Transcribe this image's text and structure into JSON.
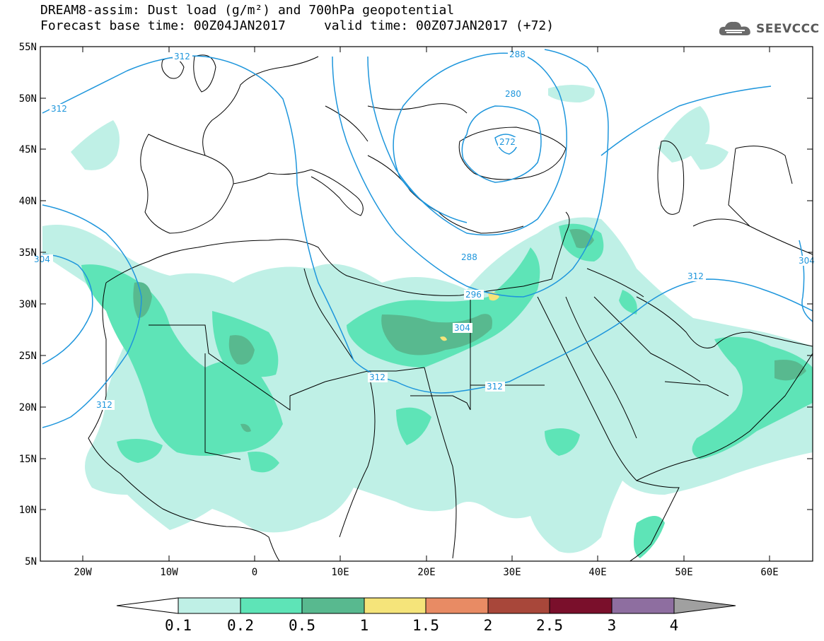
{
  "title": {
    "line1": "DREAM8-assim: Dust load (g/m²) and 700hPa geopotential",
    "line2": "Forecast base time: 00Z04JAN2017     valid time: 00Z07JAN2017 (+72)"
  },
  "logo": {
    "text": "SEEVCCC",
    "icon": "cloud-icon"
  },
  "map": {
    "lat_labels": [
      "55N",
      "50N",
      "45N",
      "40N",
      "35N",
      "30N",
      "25N",
      "20N",
      "15N",
      "10N",
      "5N"
    ],
    "lon_labels": [
      "20W",
      "10W",
      "0",
      "10E",
      "20E",
      "30E",
      "40E",
      "50E",
      "60E"
    ],
    "geopotential_labels": [
      "312",
      "312",
      "312",
      "312",
      "312",
      "312",
      "304",
      "304",
      "304",
      "296",
      "288",
      "288",
      "280",
      "272"
    ],
    "colors": {
      "contour": "#1e96dc",
      "coast": "#000000"
    }
  },
  "colorbar": {
    "ticks": [
      "0.1",
      "0.2",
      "0.5",
      "1",
      "1.5",
      "2",
      "2.5",
      "3",
      "4"
    ],
    "colors": [
      "#ffffff",
      "#bff0e6",
      "#5ee4b7",
      "#58b98f",
      "#f5e47a",
      "#e88b64",
      "#a8473a",
      "#7a0f2b",
      "#8e6ea0",
      "#a0a0a0"
    ]
  }
}
